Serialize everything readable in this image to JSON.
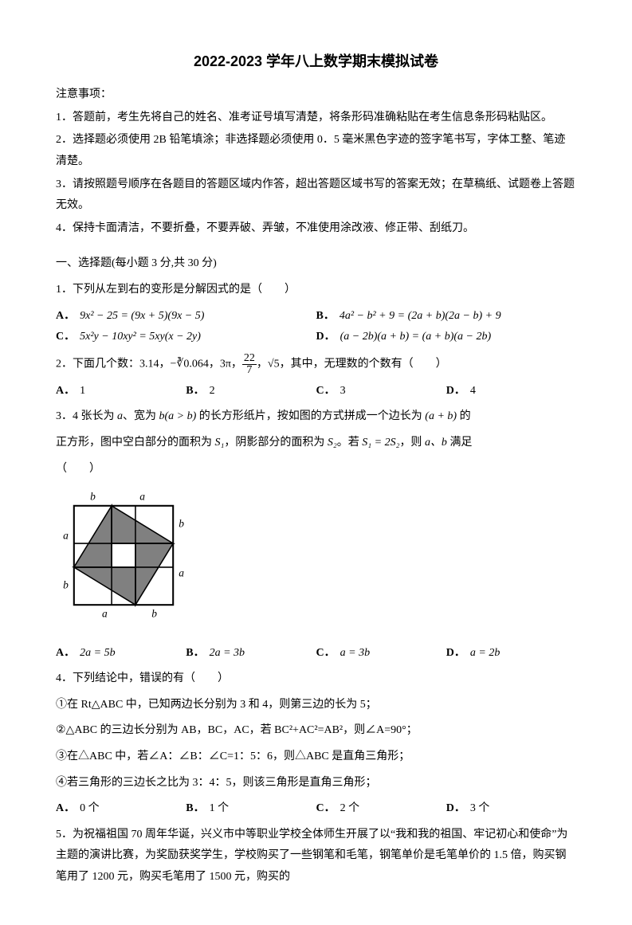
{
  "title": "2022-2023 学年八上数学期末模拟试卷",
  "notice_head": "注意事项：",
  "notices": [
    "1．答题前，考生先将自己的姓名、准考证号填写清楚，将条形码准确粘贴在考生信息条形码粘贴区。",
    "2．选择题必须使用 2B 铅笔填涂；非选择题必须使用 0．5 毫米黑色字迹的签字笔书写，字体工整、笔迹清楚。",
    "3．请按照题号顺序在各题目的答题区域内作答，超出答题区域书写的答案无效；在草稿纸、试题卷上答题无效。",
    "4．保持卡面清洁，不要折叠，不要弄破、弄皱，不准使用涂改液、修正带、刮纸刀。"
  ],
  "section1": "一、选择题(每小题 3 分,共 30 分)",
  "q1": {
    "stem": "1．下列从左到右的变形是分解因式的是（　　）",
    "A": "9x² − 25 = (9x + 5)(9x − 5)",
    "B": "4a² − b² + 9 = (2a + b)(2a − b) + 9",
    "C": "5x²y − 10xy² = 5xy(x − 2y)",
    "D": "(a − 2b)(a + b) = (a + b)(a − 2b)"
  },
  "q2": {
    "stem_pre": "2．下面几个数：3.14，",
    "stem_mid1": "−∛0.064",
    "stem_mid2": "，3π，",
    "stem_frac_num": "22",
    "stem_frac_den": "7",
    "stem_mid3": "，√5，其中，无理数的个数有（　　）",
    "A": "1",
    "B": "2",
    "C": "3",
    "D": "4"
  },
  "q3": {
    "line1_pre": "3．4 张长为 ",
    "line1_a": "a",
    "line1_mid1": "、宽为 ",
    "line1_b": "b(a > b)",
    "line1_mid2": " 的长方形纸片，按如图的方式拼成一个边长为 ",
    "line1_ab": "(a + b)",
    "line1_end": " 的",
    "line2_pre": "正方形，图中空白部分的面积为 ",
    "line2_s1": "S₁",
    "line2_mid": "，阴影部分的面积为 ",
    "line2_s2": "S₂",
    "line2_mid2": "。若 ",
    "line2_eq": "S₁ = 2S₂",
    "line2_mid3": "，则 ",
    "line2_ab": "a、b",
    "line2_end": " 满足",
    "paren": "（　　）",
    "A": "2a = 5b",
    "B": "2a = 3b",
    "C": "a = 3b",
    "D": "a = 2b",
    "fig": {
      "size": 150,
      "outer_color": "#000",
      "fill_color": "#808080",
      "bg": "#ffffff",
      "labels": {
        "a": "a",
        "b": "b"
      },
      "label_font": "italic 13px 'Times New Roman'"
    }
  },
  "q4": {
    "stem": "4．下列结论中，错误的有（　　）",
    "s1": "①在 Rt△ABC 中，已知两边长分别为 3 和 4，则第三边的长为 5；",
    "s2": "②△ABC 的三边长分别为 AB，BC，AC，若 BC²+AC²=AB²，则∠A=90°；",
    "s3": "③在△ABC 中，若∠A：∠B：∠C=1：5：6，则△ABC 是直角三角形；",
    "s4": "④若三角形的三边长之比为 3：4：5，则该三角形是直角三角形；",
    "A": "0 个",
    "B": "1 个",
    "C": "2 个",
    "D": "3 个"
  },
  "q5": {
    "text": "5．为祝福祖国 70 周年华诞，兴义市中等职业学校全体师生开展了以“我和我的祖国、牢记初心和使命”为主题的演讲比赛，为奖励获奖学生，学校购买了一些钢笔和毛笔，钢笔单价是毛笔单价的 1.5 倍，购买钢笔用了 1200 元，购买毛笔用了 1500 元，购买的"
  }
}
